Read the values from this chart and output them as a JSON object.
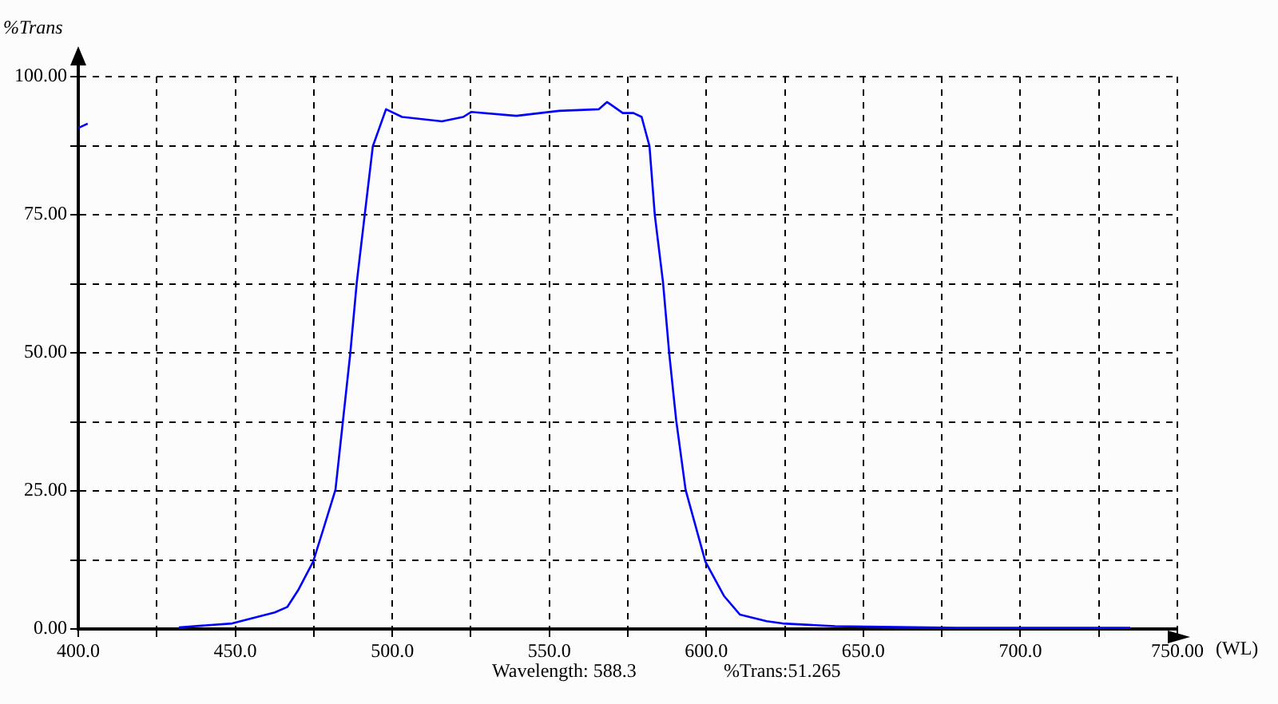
{
  "chart_data": {
    "type": "line",
    "xlabel": "(WL)",
    "ylabel": "%Trans",
    "annotations": [
      "Wavelength: 588.3",
      "%Trans:51.265"
    ],
    "x": [
      400,
      403,
      null,
      432,
      449,
      462.6,
      466.6,
      470,
      474.8,
      478,
      481.9,
      486.6,
      488.7,
      491.2,
      493.8,
      498,
      503.1,
      515.8,
      522.6,
      525.1,
      539.5,
      553.1,
      565.8,
      568.4,
      573.4,
      576.8,
      579.4,
      581.9,
      583.6,
      586.2,
      588.2,
      590.4,
      593.4,
      599.7,
      605.6,
      610.7,
      619.2,
      624.3,
      641,
      680,
      735
    ],
    "series": [
      {
        "color": "#0000ff",
        "values": [
          90.7,
          91.5,
          null,
          0.3,
          1,
          3,
          4,
          7,
          12.2,
          18,
          25.2,
          49.8,
          62.8,
          74.9,
          87.4,
          94.1,
          92.7,
          91.9,
          92.7,
          93.6,
          92.9,
          93.8,
          94.1,
          95.4,
          93.4,
          93.4,
          92.7,
          87.4,
          74.9,
          62.8,
          49.8,
          37.8,
          25.2,
          12.2,
          6,
          2.6,
          1.4,
          1,
          0.5,
          0.2,
          0.2
        ]
      }
    ],
    "xlim": [
      400,
      750
    ],
    "xticks": [
      {
        "value": 400,
        "label": "400.0"
      },
      {
        "value": 425,
        "label": null
      },
      {
        "value": 450,
        "label": "450.0"
      },
      {
        "value": 475,
        "label": null
      },
      {
        "value": 500,
        "label": "500.0"
      },
      {
        "value": 525,
        "label": null
      },
      {
        "value": 550,
        "label": "550.0"
      },
      {
        "value": 575,
        "label": null
      },
      {
        "value": 600,
        "label": "600.0"
      },
      {
        "value": 625,
        "label": null
      },
      {
        "value": 650,
        "label": "650.0"
      },
      {
        "value": 675,
        "label": null
      },
      {
        "value": 700,
        "label": "700.0"
      },
      {
        "value": 725,
        "label": null
      },
      {
        "value": 750,
        "label": "750.00"
      }
    ],
    "ylim": [
      0,
      100
    ],
    "yticks": [
      {
        "value": 0,
        "label": "0.00"
      },
      {
        "value": 12.5,
        "label": null
      },
      {
        "value": 25,
        "label": "25.00"
      },
      {
        "value": 37.5,
        "label": null
      },
      {
        "value": 50,
        "label": "50.00"
      },
      {
        "value": 62.5,
        "label": null
      },
      {
        "value": 75,
        "label": "75.00"
      },
      {
        "value": 87.5,
        "label": null
      },
      {
        "value": 100,
        "label": "100.00"
      }
    ],
    "grid": true,
    "legend": false,
    "marker": "none",
    "line_style": "solid"
  }
}
